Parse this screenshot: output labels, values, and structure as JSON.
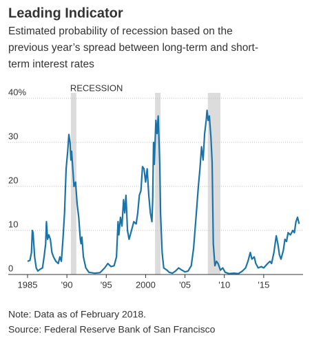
{
  "chart_data": {
    "type": "line",
    "title": "Leading Indicator",
    "subtitle": [
      "Estimated probability of recession based on the",
      "previous year’s spread between long-term and short-",
      "term interest rates"
    ],
    "annotation": "RECESSION",
    "note": "Note: Data as of February 2018.",
    "source": "Source: Federal Reserve Bank of San Francisco",
    "recessions": [
      [
        1990.5,
        1991.2
      ],
      [
        2001.2,
        2001.9
      ],
      [
        2007.9,
        2009.5
      ]
    ],
    "recession_color": "#dcdcdc",
    "xlim": [
      1985,
      2020
    ],
    "xticks": [
      1985,
      {
        "value": 1990,
        "label": "'90"
      },
      {
        "value": 1995,
        "label": "'95"
      },
      2000,
      {
        "value": 2005,
        "label": "'05"
      },
      {
        "value": 2010,
        "label": "'10"
      },
      {
        "value": 2015,
        "label": "'15"
      }
    ],
    "ylim": [
      0,
      40
    ],
    "yticks": [
      0,
      10,
      20,
      30,
      {
        "value": 40,
        "label": "40%"
      }
    ],
    "grid": true,
    "x": [
      1985.0,
      1985.3,
      1985.5,
      1985.6,
      1985.7,
      1985.9,
      1986.1,
      1986.3,
      1986.6,
      1986.9,
      1987.1,
      1987.3,
      1987.4,
      1987.55,
      1987.7,
      1987.9,
      1988.1,
      1988.3,
      1988.6,
      1988.9,
      1989.1,
      1989.3,
      1989.5,
      1989.7,
      1989.9,
      1990.1,
      1990.25,
      1990.4,
      1990.5,
      1990.6,
      1990.75,
      1990.9,
      1991.1,
      1991.3,
      1991.5,
      1991.7,
      1991.8,
      1991.9,
      1992.1,
      1992.4,
      1992.8,
      1993.5,
      1994.2,
      1994.8,
      1995.2,
      1995.6,
      1996.0,
      1996.3,
      1996.5,
      1996.6,
      1996.8,
      1997.0,
      1997.2,
      1997.35,
      1997.5,
      1997.7,
      1997.9,
      1998.2,
      1998.5,
      1998.8,
      1999.0,
      1999.2,
      1999.4,
      1999.6,
      1999.8,
      2000.0,
      2000.2,
      2000.4,
      2000.6,
      2000.8,
      2000.9,
      2001.0,
      2001.1,
      2001.3,
      2001.45,
      2001.6,
      2001.8,
      2001.9,
      2002.1,
      2002.3,
      2002.7,
      2003.0,
      2003.4,
      2003.8,
      2004.2,
      2004.6,
      2005.0,
      2005.4,
      2005.8,
      2006.1,
      2006.4,
      2006.7,
      2006.9,
      2007.1,
      2007.3,
      2007.5,
      2007.7,
      2007.8,
      2007.95,
      2008.1,
      2008.3,
      2008.45,
      2008.5,
      2008.6,
      2008.8,
      2009.0,
      2009.2,
      2009.5,
      2009.8,
      2010.1,
      2010.6,
      2011.2,
      2011.8,
      2012.3,
      2012.7,
      2013.0,
      2013.3,
      2013.5,
      2013.8,
      2014.0,
      2014.3,
      2014.7,
      2015.0,
      2015.5,
      2015.8,
      2016.0,
      2016.3,
      2016.6,
      2016.8,
      2017.0,
      2017.2,
      2017.5,
      2017.7,
      2017.9,
      2018.1,
      2018.4,
      2018.7,
      2018.9,
      2019.1,
      2019.3,
      2019.5
    ],
    "series": [
      {
        "name": "Probability",
        "color": "#1a73a8",
        "values": [
          3,
          3.2,
          5,
          10,
          9.5,
          4,
          1.5,
          0.8,
          1.2,
          1.5,
          4,
          7,
          12,
          8,
          9,
          8,
          5,
          4,
          3,
          2.5,
          4,
          3,
          8,
          14,
          24,
          28,
          31.8,
          30,
          26,
          28,
          24,
          20,
          21,
          16,
          13,
          8,
          7,
          8.5,
          4,
          1.5,
          0.5,
          0.3,
          0.4,
          1.5,
          2.5,
          1.8,
          2,
          4,
          12,
          9,
          13,
          11,
          17,
          14,
          18,
          10,
          8,
          10,
          12,
          11.5,
          14,
          18,
          19,
          24.5,
          24,
          21,
          24,
          18,
          14,
          12,
          17,
          30,
          25,
          35,
          32,
          36,
          25,
          14,
          5,
          1.5,
          1,
          0.5,
          0.3,
          0.8,
          1.5,
          1,
          0.6,
          0.8,
          2,
          6,
          13,
          20,
          24,
          29,
          26,
          32,
          35,
          37.3,
          35,
          36,
          31,
          25.5,
          19,
          7,
          2,
          3,
          2.5,
          1,
          1.5,
          0.5,
          0.2,
          0.3,
          0.2,
          0.8,
          1.5,
          3,
          5,
          3.5,
          4,
          2.5,
          1.5,
          1.8,
          1.5,
          2.5,
          3,
          2.5,
          5,
          8.8,
          7,
          4.5,
          3.5,
          5.5,
          8,
          7.5,
          9.5,
          9,
          10,
          9.5,
          12,
          13,
          11.5
        ]
      }
    ]
  }
}
